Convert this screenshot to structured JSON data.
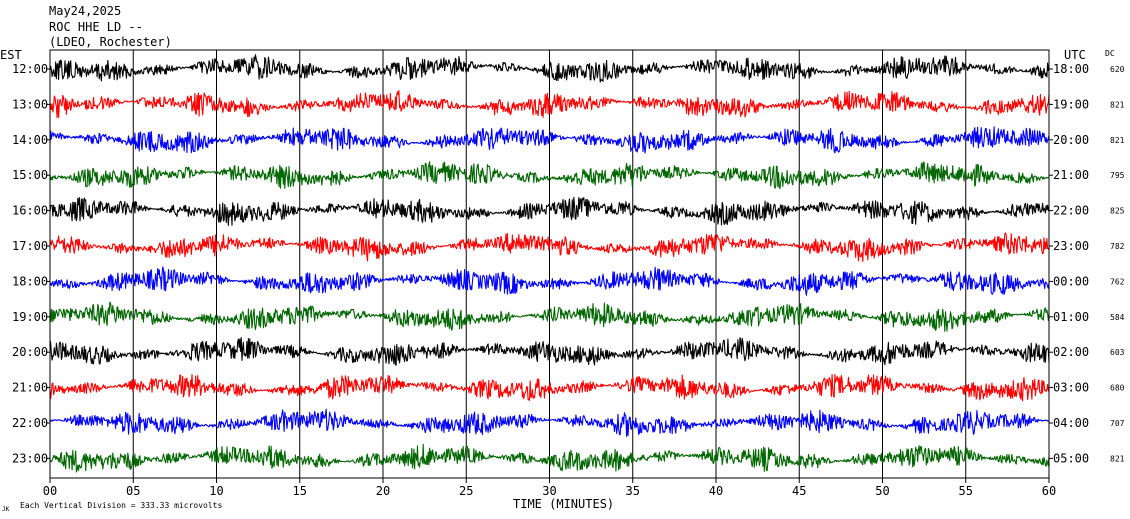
{
  "header": {
    "date": "May24,2025",
    "station": "ROC HHE LD --",
    "network": "(LDEO, Rochester)"
  },
  "left_axis_title": "EST",
  "right_axis_title": "UTC",
  "dc_title": "DC",
  "footer": {
    "scale_note": "Each Vertical Division =  333.33 microvolts",
    "corner_mark": "JK"
  },
  "chart_data": {
    "type": "line",
    "title": "ROC HHE LD --",
    "xlabel": "TIME (MINUTES)",
    "xlim": [
      0,
      60
    ],
    "x_ticks": [
      "00",
      "05",
      "10",
      "15",
      "20",
      "25",
      "30",
      "35",
      "40",
      "45",
      "50",
      "55",
      "60"
    ],
    "grid": "vertical lines every 5 minutes",
    "trace_colors": [
      "#000000",
      "#ff0000",
      "#0000ff",
      "#006600"
    ],
    "rows": [
      {
        "est": "12:00",
        "utc": "18:00",
        "dc": "620",
        "color": "#000000"
      },
      {
        "est": "13:00",
        "utc": "19:00",
        "dc": "821",
        "color": "#ff0000"
      },
      {
        "est": "14:00",
        "utc": "20:00",
        "dc": "821",
        "color": "#0000ff"
      },
      {
        "est": "15:00",
        "utc": "21:00",
        "dc": "795",
        "color": "#006600"
      },
      {
        "est": "16:00",
        "utc": "22:00",
        "dc": "825",
        "color": "#000000"
      },
      {
        "est": "17:00",
        "utc": "23:00",
        "dc": "782",
        "color": "#ff0000"
      },
      {
        "est": "18:00",
        "utc": "00:00",
        "dc": "762",
        "color": "#0000ff"
      },
      {
        "est": "19:00",
        "utc": "01:00",
        "dc": "584",
        "color": "#006600"
      },
      {
        "est": "20:00",
        "utc": "02:00",
        "dc": "603",
        "color": "#000000"
      },
      {
        "est": "21:00",
        "utc": "03:00",
        "dc": "680",
        "color": "#ff0000"
      },
      {
        "est": "22:00",
        "utc": "04:00",
        "dc": "707",
        "color": "#0000ff"
      },
      {
        "est": "23:00",
        "utc": "05:00",
        "dc": "821",
        "color": "#006600"
      }
    ]
  }
}
